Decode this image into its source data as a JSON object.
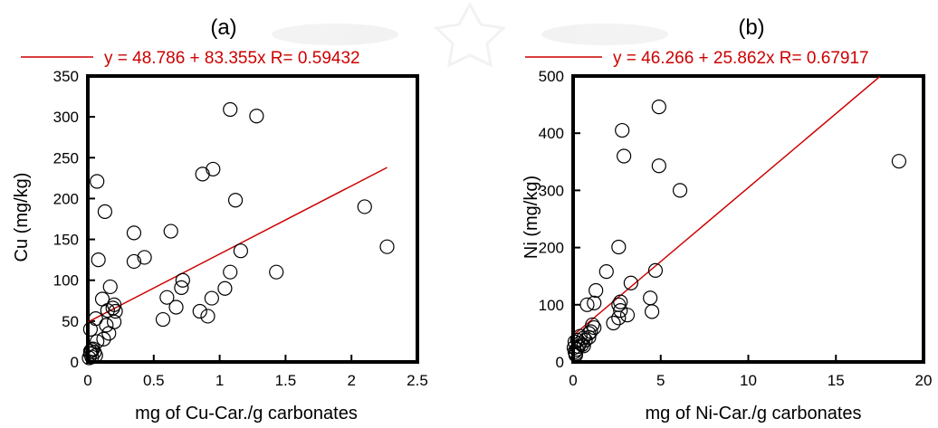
{
  "chart_data": [
    {
      "type": "scatter",
      "title": "(a)",
      "xlabel": "mg of Cu-Car./g carbonates",
      "ylabel": "Cu (mg/kg)",
      "xlim": [
        0,
        2.5
      ],
      "ylim": [
        0,
        350
      ],
      "xticks": [
        "0",
        "0.5",
        "1",
        "1.5",
        "2",
        "2.5"
      ],
      "yticks": [
        "0",
        "50",
        "100",
        "150",
        "200",
        "250",
        "300",
        "350"
      ],
      "xtick_values": [
        0,
        0.5,
        1,
        1.5,
        2,
        2.5
      ],
      "ytick_values": [
        0,
        50,
        100,
        150,
        200,
        250,
        300,
        350
      ],
      "legend": {
        "placement": "top",
        "text": "y = 48.786 + 83.355x    R= 0.59432",
        "line_color": "#cc0000"
      },
      "fit": {
        "intercept": 48.786,
        "slope": 83.355,
        "x_range": [
          0,
          2.27
        ],
        "color": "#cc0000"
      },
      "grid": false,
      "points": [
        [
          0.07,
          221
        ],
        [
          0.13,
          184
        ],
        [
          0.08,
          125
        ],
        [
          0.35,
          158
        ],
        [
          0.43,
          128
        ],
        [
          0.35,
          123
        ],
        [
          0.63,
          160
        ],
        [
          0.87,
          230
        ],
        [
          0.95,
          236
        ],
        [
          1.12,
          198
        ],
        [
          1.08,
          309
        ],
        [
          1.28,
          301
        ],
        [
          1.16,
          136
        ],
        [
          1.08,
          110
        ],
        [
          1.43,
          110
        ],
        [
          2.1,
          190
        ],
        [
          2.27,
          141
        ],
        [
          0.72,
          100
        ],
        [
          0.71,
          91
        ],
        [
          0.6,
          79
        ],
        [
          0.94,
          78
        ],
        [
          1.04,
          90
        ],
        [
          0.67,
          67
        ],
        [
          0.85,
          62
        ],
        [
          0.91,
          56
        ],
        [
          0.57,
          52
        ],
        [
          0.17,
          92
        ],
        [
          0.11,
          77
        ],
        [
          0.15,
          63
        ],
        [
          0.2,
          70
        ],
        [
          0.21,
          62
        ],
        [
          0.19,
          66
        ],
        [
          0.14,
          45
        ],
        [
          0.2,
          49
        ],
        [
          0.16,
          35
        ],
        [
          0.06,
          53
        ],
        [
          0.02,
          40
        ],
        [
          0.12,
          28
        ],
        [
          0.07,
          25
        ],
        [
          0.03,
          15
        ],
        [
          0.05,
          12
        ],
        [
          0.02,
          10
        ],
        [
          0.06,
          8
        ],
        [
          0.01,
          5
        ],
        [
          0.03,
          6
        ],
        [
          0.04,
          16
        ],
        [
          0.02,
          13
        ]
      ]
    },
    {
      "type": "scatter",
      "title": "(b)",
      "xlabel": "mg of Ni-Car./g carbonates",
      "ylabel": "Ni (mg/kg)",
      "xlim": [
        0,
        20
      ],
      "ylim": [
        0,
        500
      ],
      "xticks": [
        "0",
        "5",
        "10",
        "15",
        "20"
      ],
      "yticks": [
        "0",
        "100",
        "200",
        "300",
        "400",
        "500"
      ],
      "xtick_values": [
        0,
        5,
        10,
        15,
        20
      ],
      "ytick_values": [
        0,
        100,
        200,
        300,
        400,
        500
      ],
      "legend": {
        "placement": "top",
        "text": "y = 46.266 + 25.862x    R= 0.67917",
        "line_color": "#cc0000"
      },
      "fit": {
        "intercept": 46.266,
        "slope": 25.862,
        "x_range": [
          0,
          17.5
        ],
        "color": "#cc0000"
      },
      "grid": false,
      "points": [
        [
          4.9,
          446
        ],
        [
          2.8,
          405
        ],
        [
          2.9,
          360
        ],
        [
          4.9,
          343
        ],
        [
          6.1,
          300
        ],
        [
          18.6,
          351
        ],
        [
          2.6,
          201
        ],
        [
          1.9,
          158
        ],
        [
          4.7,
          160
        ],
        [
          3.3,
          138
        ],
        [
          1.3,
          125
        ],
        [
          4.4,
          112
        ],
        [
          4.5,
          88
        ],
        [
          2.7,
          105
        ],
        [
          2.6,
          100
        ],
        [
          2.7,
          90
        ],
        [
          2.6,
          77
        ],
        [
          3.1,
          82
        ],
        [
          2.3,
          68
        ],
        [
          1.2,
          103
        ],
        [
          0.8,
          100
        ],
        [
          1.2,
          60
        ],
        [
          1.1,
          65
        ],
        [
          1.0,
          53
        ],
        [
          0.9,
          43
        ],
        [
          0.7,
          38
        ],
        [
          0.6,
          42
        ],
        [
          0.4,
          33
        ],
        [
          0.5,
          30
        ],
        [
          0.3,
          27
        ],
        [
          0.2,
          22
        ],
        [
          0.1,
          18
        ],
        [
          0.15,
          12
        ],
        [
          0.1,
          35
        ],
        [
          0.9,
          50
        ],
        [
          0.4,
          45
        ],
        [
          0.25,
          38
        ],
        [
          0.6,
          28
        ],
        [
          0.15,
          15
        ],
        [
          0.05,
          25
        ]
      ]
    }
  ]
}
